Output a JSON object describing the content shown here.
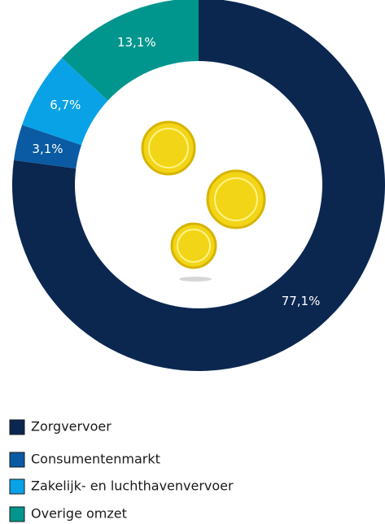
{
  "chart_data": {
    "type": "donut",
    "categories": [
      "Zorgvervoer",
      "Consumentenmarkt",
      "Zakelijk- en luchthavenvervoer",
      "Overige omzet"
    ],
    "values": [
      77.1,
      3.1,
      6.7,
      13.1
    ],
    "value_labels": [
      "77,1%",
      "3,1%",
      "6,7%",
      "13,1%"
    ],
    "colors": [
      "#0b2750",
      "#0a5ba3",
      "#0aa2e6",
      "#00968d"
    ]
  }
}
